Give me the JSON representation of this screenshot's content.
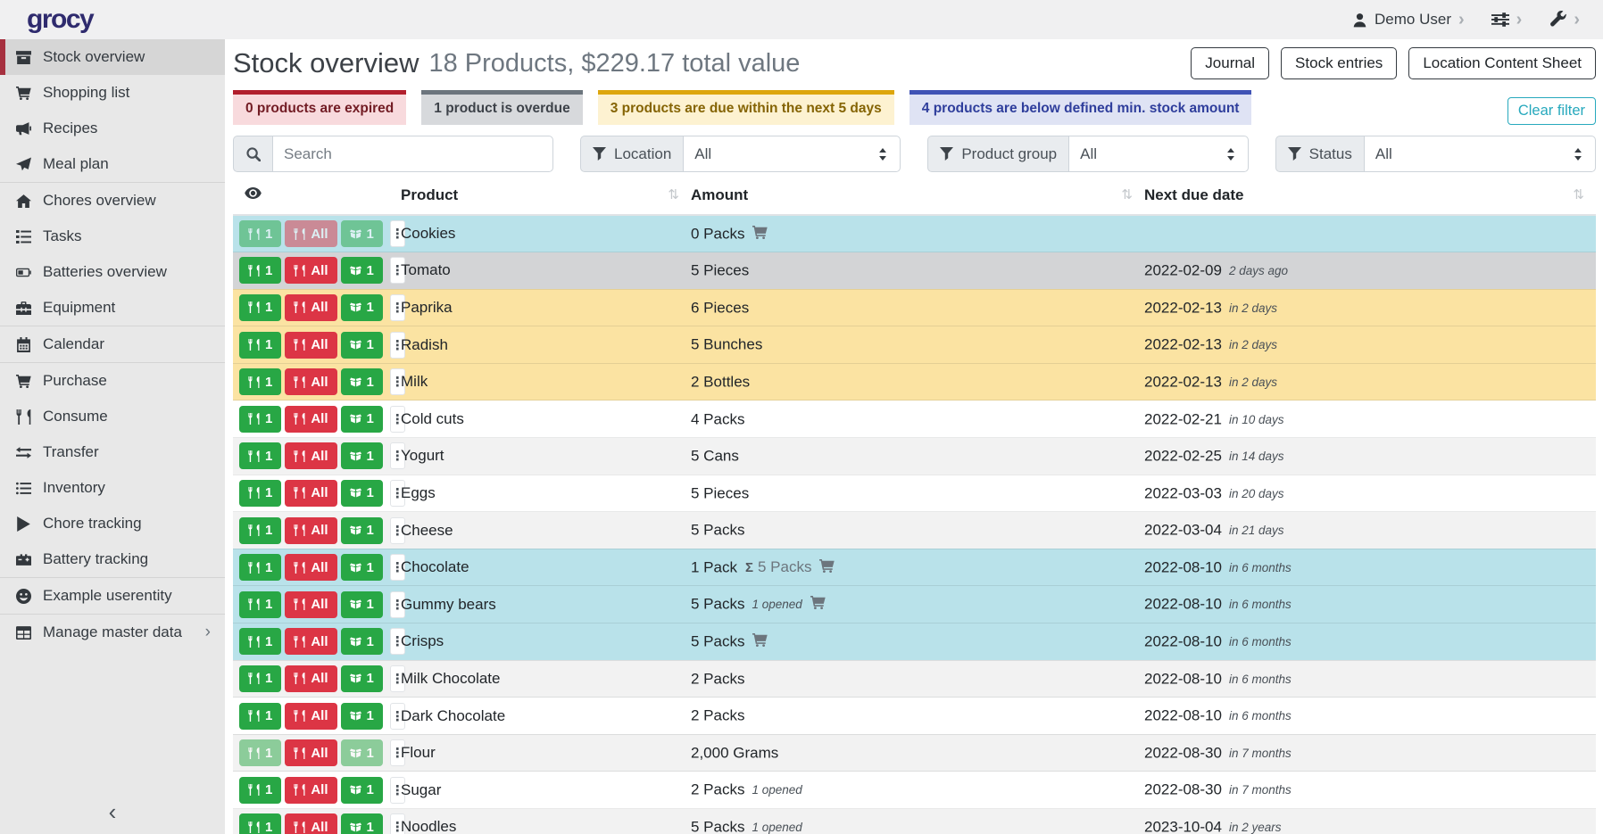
{
  "navbar": {
    "logo": "grocy",
    "user_label": "Demo User"
  },
  "glyphs": {
    "chevron-right-icon": "›",
    "chevron-left-icon": "‹",
    "ellipsis-icon": "⋮",
    "sort-icon": "⇅",
    "sigma-icon": "Σ"
  },
  "sidebar": {
    "items": [
      {
        "label": "Stock overview",
        "icon": "boxes-icon",
        "active": true
      },
      {
        "label": "Shopping list",
        "icon": "cart-icon"
      },
      {
        "label": "Recipes",
        "icon": "megaphone-icon"
      },
      {
        "label": "Meal plan",
        "icon": "paper-plane-icon",
        "divider_after": true
      },
      {
        "label": "Chores overview",
        "icon": "home-icon"
      },
      {
        "label": "Tasks",
        "icon": "tasks-icon"
      },
      {
        "label": "Batteries overview",
        "icon": "battery-icon"
      },
      {
        "label": "Equipment",
        "icon": "toolbox-icon",
        "divider_after": true
      },
      {
        "label": "Calendar",
        "icon": "calendar-icon",
        "divider_after": true
      },
      {
        "label": "Purchase",
        "icon": "cart-plus-icon"
      },
      {
        "label": "Consume",
        "icon": "utensils-icon"
      },
      {
        "label": "Transfer",
        "icon": "exchange-icon"
      },
      {
        "label": "Inventory",
        "icon": "list-icon"
      },
      {
        "label": "Chore tracking",
        "icon": "play-icon"
      },
      {
        "label": "Battery tracking",
        "icon": "car-battery-icon",
        "divider_after": true
      },
      {
        "label": "Example userentity",
        "icon": "smiley-icon",
        "divider_after": true
      },
      {
        "label": "Manage master data",
        "icon": "table-icon",
        "chevron": true
      }
    ]
  },
  "header": {
    "title": "Stock overview",
    "subtitle": "18 Products, $229.17 total value",
    "buttons": [
      "Journal",
      "Stock entries",
      "Location Content Sheet"
    ]
  },
  "banners": [
    {
      "text": "0 products are expired",
      "variant": "danger"
    },
    {
      "text": "1 product is overdue",
      "variant": "secondary"
    },
    {
      "text": "3 products are due within the next 5 days",
      "variant": "warning"
    },
    {
      "text": "4 products are below defined min. stock amount",
      "variant": "indigo"
    }
  ],
  "clear_filter_label": "Clear filter",
  "filters": {
    "search_placeholder": "Search",
    "groups": [
      {
        "label": "Location",
        "value": "All"
      },
      {
        "label": "Product group",
        "value": "All"
      },
      {
        "label": "Status",
        "value": "All"
      }
    ]
  },
  "table": {
    "columns": {
      "product": "Product",
      "amount": "Amount",
      "due": "Next due date"
    },
    "row_buttons": {
      "consume_one": "1",
      "consume_all": "All",
      "open_one": "1"
    },
    "rows": [
      {
        "product": "Cookies",
        "amount": "0 Packs",
        "cart": true,
        "due": "",
        "rel": "",
        "variant": "info",
        "disabled": [
          "consume_one",
          "consume_all",
          "open_one"
        ]
      },
      {
        "product": "Tomato",
        "amount": "5 Pieces",
        "due": "2022-02-09",
        "rel": "2 days ago",
        "variant": "secondary"
      },
      {
        "product": "Paprika",
        "amount": "6 Pieces",
        "due": "2022-02-13",
        "rel": "in 2 days",
        "variant": "warning"
      },
      {
        "product": "Radish",
        "amount": "5 Bunches",
        "due": "2022-02-13",
        "rel": "in 2 days",
        "variant": "warning"
      },
      {
        "product": "Milk",
        "amount": "2 Bottles",
        "due": "2022-02-13",
        "rel": "in 2 days",
        "variant": "warning"
      },
      {
        "product": "Cold cuts",
        "amount": "4 Packs",
        "due": "2022-02-21",
        "rel": "in 10 days"
      },
      {
        "product": "Yogurt",
        "amount": "5 Cans",
        "due": "2022-02-25",
        "rel": "in 14 days"
      },
      {
        "product": "Eggs",
        "amount": "5 Pieces",
        "due": "2022-03-03",
        "rel": "in 20 days"
      },
      {
        "product": "Cheese",
        "amount": "5 Packs",
        "due": "2022-03-04",
        "rel": "in 21 days"
      },
      {
        "product": "Chocolate",
        "amount": "1 Pack",
        "sum": "5 Packs",
        "cart": true,
        "due": "2022-08-10",
        "rel": "in 6 months",
        "variant": "info"
      },
      {
        "product": "Gummy bears",
        "amount": "5 Packs",
        "opened": "1 opened",
        "cart": true,
        "due": "2022-08-10",
        "rel": "in 6 months",
        "variant": "info"
      },
      {
        "product": "Crisps",
        "amount": "5 Packs",
        "cart": true,
        "due": "2022-08-10",
        "rel": "in 6 months",
        "variant": "info"
      },
      {
        "product": "Milk Chocolate",
        "amount": "2 Packs",
        "due": "2022-08-10",
        "rel": "in 6 months"
      },
      {
        "product": "Dark Chocolate",
        "amount": "2 Packs",
        "due": "2022-08-10",
        "rel": "in 6 months"
      },
      {
        "product": "Flour",
        "amount": "2,000 Grams",
        "due": "2022-08-30",
        "rel": "in 7 months",
        "disabled": [
          "consume_one",
          "open_one"
        ]
      },
      {
        "product": "Sugar",
        "amount": "2 Packs",
        "opened": "1 opened",
        "due": "2022-08-30",
        "rel": "in 7 months"
      },
      {
        "product": "Noodles",
        "amount": "5 Packs",
        "opened": "1 opened",
        "due": "2023-10-04",
        "rel": "in 2 years"
      }
    ]
  },
  "colors": {
    "accent_red": "#a6303f",
    "success": "#28a745",
    "danger": "#dc3545",
    "info_row": "#b9e2ea",
    "warning_row": "#fbe3a2",
    "secondary_row": "#d3d4d6",
    "teal": "#27a9bd",
    "indigo": "#4053b5",
    "logo": "#2f2b6e"
  }
}
